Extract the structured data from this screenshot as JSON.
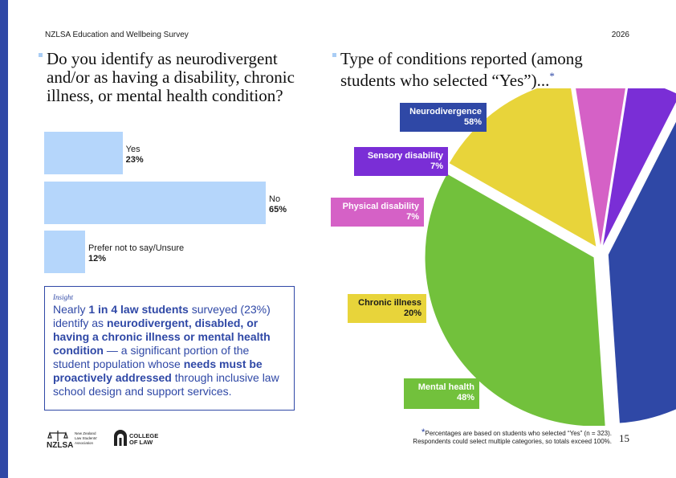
{
  "header": {
    "survey_title": "NZLSA Education and Wellbeing Survey",
    "year": "2026"
  },
  "left": {
    "question": "Do you identify as neurodivergent and/or as having a disability, chronic illness, or mental health condition?",
    "bar_chart": {
      "type": "bar",
      "orientation": "horizontal",
      "categories": [
        "Yes",
        "No",
        "Prefer not to say/Unsure"
      ],
      "values": [
        23,
        65,
        12
      ],
      "value_labels": [
        "23%",
        "65%",
        "12%"
      ],
      "color": "#b5d6fb"
    },
    "insight": {
      "title": "Insight",
      "p1": "Nearly ",
      "b1": "1 in 4 law students",
      "p2": " surveyed (23%) identify as ",
      "b2": "neurodivergent, disabled, or having a chronic illness or mental health condition",
      "p3": " — a significant portion of the student population whose ",
      "b3": "needs must be proactively addressed",
      "p4": " through inclusive law school design and support services."
    }
  },
  "logos": {
    "nzlsa_text": "NZLSA",
    "nzlsa_subtitle": [
      "New Zealand",
      "Law Students'",
      "Association"
    ],
    "col_text": [
      "COLLEGE",
      "OF LAW"
    ]
  },
  "right": {
    "title": "Type of conditions reported (among students who selected “Yes”)...",
    "title_marker": "*",
    "pie_chart": {
      "type": "pie",
      "categories": [
        "Neurodivergence",
        "Mental health",
        "Chronic illness",
        "Physical disability",
        "Sensory disability"
      ],
      "values": [
        58,
        48,
        20,
        7,
        7
      ],
      "value_labels": [
        "58%",
        "48%",
        "20%",
        "7%",
        "7%"
      ],
      "colors": [
        "#2f48a6",
        "#72c13c",
        "#e8d43a",
        "#d561c6",
        "#7a2ed6"
      ]
    },
    "footnote": {
      "marker": "*",
      "line1": "Percentages are based on students who selected “Yes” (n = 323).",
      "line2": "Respondents could select multiple categories, so totals exceed 100%."
    }
  },
  "page_number": "15"
}
